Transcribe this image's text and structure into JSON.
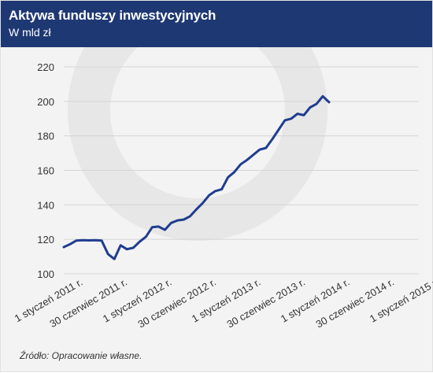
{
  "header": {
    "title": "Aktywa funduszy inwestycyjnych",
    "subtitle": "W mld zł"
  },
  "source_note": "Źródło: Opracowanie własne.",
  "colors": {
    "header_bg": "#1e3873",
    "line": "#1f3d8f",
    "background": "#f3f3f3",
    "watermark": "#e7e7e7"
  },
  "chart_data": {
    "type": "line",
    "title": "Aktywa funduszy inwestycyjnych",
    "subtitle": "W mld zł",
    "xlabel": "",
    "ylabel": "",
    "ylim": [
      100,
      220
    ],
    "yticks": [
      100,
      120,
      140,
      160,
      180,
      200,
      220
    ],
    "xtick_labels": [
      "1 styczeń 2011 r.",
      "30 czerwiec 2011 r.",
      "1 styczeń 2012 r.",
      "30 czerwiec 2012 r.",
      "1 styczeń 2013 r.",
      "30 czerwiec 2013 r.",
      "1 styczeń 2014 r.",
      "30 czerwiec 2014 r.",
      "1 styczeń 2015 r."
    ],
    "grid": "horizontal",
    "series": [
      {
        "values": [
          115.5,
          117.2,
          119.3,
          119.5,
          119.4,
          119.5,
          119.3,
          111.5,
          108.6,
          116.5,
          114.3,
          115.1,
          118.6,
          121.5,
          127.0,
          127.4,
          125.5,
          129.5,
          131.0,
          131.5,
          133.4,
          137.4,
          141.0,
          145.5,
          148.0,
          149.0,
          156.0,
          159.0,
          163.5,
          166.0,
          169.0,
          172.0,
          173.0,
          178.0,
          183.5,
          189.0,
          190.0,
          192.8,
          192.0,
          196.5,
          198.5,
          203.0,
          199.5
        ]
      }
    ]
  }
}
